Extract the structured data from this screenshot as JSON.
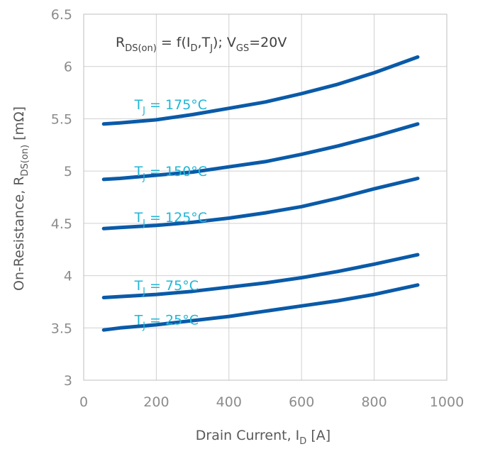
{
  "chart_data": {
    "type": "line",
    "xlim": [
      0,
      1000
    ],
    "ylim": [
      3,
      6.5
    ],
    "x_ticks": [
      0,
      200,
      400,
      600,
      800,
      1000
    ],
    "y_ticks": [
      3,
      3.5,
      4,
      4.5,
      5,
      5.5,
      6,
      6.5
    ],
    "x_tick_labels": [
      "0",
      "200",
      "400",
      "600",
      "800",
      "1000"
    ],
    "y_tick_labels": [
      "3",
      "3.5",
      "4",
      "4.5",
      "5",
      "5.5",
      "6",
      "6.5"
    ],
    "grid": true,
    "xlabel": {
      "main": "Drain Current, I",
      "sub": "D",
      "unit": " [A]"
    },
    "ylabel": {
      "main": "On-Resistance, R",
      "sub": "DS(on)",
      "unit": " [mΩ]"
    },
    "annotation": {
      "r": "R",
      "r_sub": "DS(on)",
      "eq": " = f(I",
      "i_sub": "D",
      "comma": ",T",
      "t_sub": "J",
      "tail": "); V",
      "v_sub": "GS",
      "end": "=20V"
    },
    "series_color": "#0a5aa8",
    "label_color": "#1fb6d6",
    "series": [
      {
        "name": "T_J = 175°C",
        "label_prefix": "T",
        "label_sub": "J",
        "label_suffix": " = 175°C",
        "label_at": [
          48,
          5.64
        ],
        "x": [
          55,
          100,
          200,
          300,
          400,
          500,
          600,
          700,
          800,
          920
        ],
        "y": [
          5.45,
          5.46,
          5.49,
          5.54,
          5.6,
          5.66,
          5.74,
          5.83,
          5.94,
          6.09
        ]
      },
      {
        "name": "T_J = 150°C",
        "label_prefix": "T",
        "label_sub": "J",
        "label_suffix": " = 150°C",
        "label_at": [
          48,
          5.0
        ],
        "x": [
          55,
          100,
          200,
          300,
          400,
          500,
          600,
          700,
          800,
          920
        ],
        "y": [
          4.92,
          4.93,
          4.96,
          4.99,
          5.04,
          5.09,
          5.16,
          5.24,
          5.33,
          5.45
        ]
      },
      {
        "name": "T_J = 125°C",
        "label_prefix": "T",
        "label_sub": "J",
        "label_suffix": " = 125°C",
        "label_at": [
          48,
          4.56
        ],
        "x": [
          55,
          100,
          200,
          300,
          400,
          500,
          600,
          700,
          800,
          920
        ],
        "y": [
          4.45,
          4.46,
          4.48,
          4.51,
          4.55,
          4.6,
          4.66,
          4.74,
          4.83,
          4.93
        ]
      },
      {
        "name": "T_J = 75°C",
        "label_prefix": "T",
        "label_sub": "J",
        "label_suffix": " = 75°C",
        "label_at": [
          48,
          3.91
        ],
        "x": [
          55,
          100,
          200,
          300,
          400,
          500,
          600,
          700,
          800,
          920
        ],
        "y": [
          3.79,
          3.8,
          3.82,
          3.85,
          3.89,
          3.93,
          3.98,
          4.04,
          4.11,
          4.2
        ]
      },
      {
        "name": "T_J = 25°C",
        "label_prefix": "T",
        "label_sub": "J",
        "label_suffix": " = 25°C",
        "label_at": [
          48,
          3.58
        ],
        "x": [
          55,
          100,
          200,
          300,
          400,
          500,
          600,
          700,
          800,
          920
        ],
        "y": [
          3.48,
          3.5,
          3.53,
          3.57,
          3.61,
          3.66,
          3.71,
          3.76,
          3.82,
          3.91
        ]
      }
    ]
  }
}
